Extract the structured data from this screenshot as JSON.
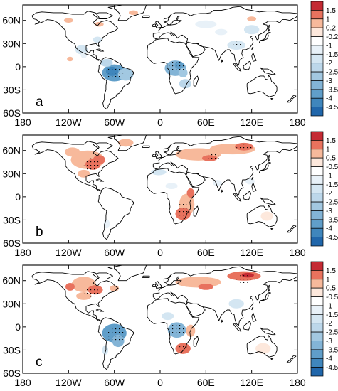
{
  "panels": [
    {
      "label": "a",
      "colorbar": {
        "colors": [
          "#c42a33",
          "#e8725e",
          "#f7b99b",
          "#fde8dc",
          "#ffffff",
          "#e8f1f8",
          "#d4e6f2",
          "#bcd7ea",
          "#a2c8e1",
          "#83b4d6",
          "#609ec9",
          "#3f86bc",
          "#2066aa"
        ],
        "labels": [
          "1.5",
          "1",
          "0.2",
          "-0.2",
          "-1",
          "-1.5",
          "-2",
          "-2.5",
          "-3",
          "-3.5",
          "-4",
          "-4.5"
        ]
      }
    },
    {
      "label": "b",
      "colorbar": {
        "colors": [
          "#c42a33",
          "#e8725e",
          "#f7b99b",
          "#fde8dc",
          "#ffffff",
          "#e8f1f8",
          "#d4e6f2",
          "#bcd7ea",
          "#a2c8e1",
          "#83b4d6",
          "#609ec9",
          "#3f86bc",
          "#2066aa"
        ],
        "labels": [
          "1.5",
          "1",
          "0.5",
          "-0.5",
          "-1",
          "-1.5",
          "-2",
          "-2.5",
          "-3",
          "-3.5",
          "-4",
          "-4.5"
        ]
      }
    },
    {
      "label": "c",
      "colorbar": {
        "colors": [
          "#c42a33",
          "#e8725e",
          "#f7b99b",
          "#fde8dc",
          "#ffffff",
          "#e8f1f8",
          "#d4e6f2",
          "#bcd7ea",
          "#a2c8e1",
          "#83b4d6",
          "#609ec9",
          "#3f86bc",
          "#2066aa"
        ],
        "labels": [
          "1.5",
          "1",
          "0.5",
          "-0.5",
          "-1",
          "-1.5",
          "-2",
          "-2.5",
          "-3",
          "-3.5",
          "-4",
          "-4.5"
        ]
      }
    }
  ],
  "map": {
    "lat_ticks": [
      {
        "value": 60,
        "label": "60N"
      },
      {
        "value": 30,
        "label": "30N"
      },
      {
        "value": 0,
        "label": "0"
      },
      {
        "value": -30,
        "label": "30S"
      },
      {
        "value": -60,
        "label": "60S"
      }
    ],
    "lon_ticks": [
      {
        "value": -180,
        "label": "180"
      },
      {
        "value": -120,
        "label": "120W"
      },
      {
        "value": -60,
        "label": "60W"
      },
      {
        "value": 0,
        "label": "0"
      },
      {
        "value": 60,
        "label": "60E"
      },
      {
        "value": 120,
        "label": "120E"
      },
      {
        "value": 180,
        "label": "180"
      }
    ],
    "lon_range": [
      -180,
      180
    ],
    "lat_range": [
      -60,
      80
    ]
  }
}
